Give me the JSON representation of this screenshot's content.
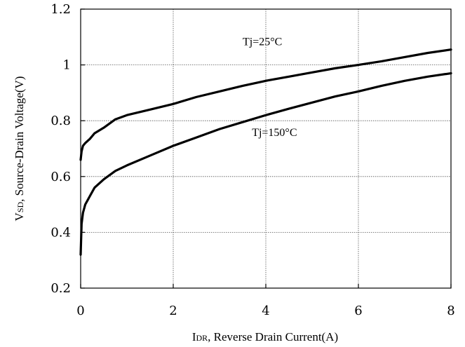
{
  "chart_data": {
    "type": "line",
    "title": "",
    "xlabel": {
      "main": "I",
      "sub": "DR",
      "rest": ", Reverse Drain Current(A)"
    },
    "ylabel": {
      "main": "V",
      "sub": "SD",
      "rest": ", Source-Drain Voltage(V)"
    },
    "xlim": [
      0,
      8
    ],
    "ylim": [
      0.2,
      1.2
    ],
    "x_ticks": [
      "0",
      "2",
      "4",
      "6",
      "8"
    ],
    "y_ticks": [
      "0.2",
      "0.4",
      "0.6",
      "0.8",
      "1",
      "1.2"
    ],
    "grid": true,
    "annotations": [
      {
        "text": "Tj=25°C",
        "x": 3.5,
        "y": 1.07
      },
      {
        "text": "Tj=150°C",
        "x": 3.7,
        "y": 0.745
      }
    ],
    "series": [
      {
        "x": [
          0,
          0.02,
          0.05,
          0.1,
          0.2,
          0.3,
          0.5,
          0.75,
          1,
          1.5,
          2,
          2.5,
          3,
          3.5,
          4,
          4.5,
          5,
          5.5,
          6,
          6.5,
          7,
          7.5,
          8
        ],
        "y": [
          0.66,
          0.69,
          0.71,
          0.72,
          0.735,
          0.755,
          0.775,
          0.805,
          0.82,
          0.84,
          0.86,
          0.885,
          0.905,
          0.925,
          0.943,
          0.958,
          0.973,
          0.988,
          1.0,
          1.013,
          1.028,
          1.043,
          1.055
        ]
      },
      {
        "x": [
          0,
          0.02,
          0.05,
          0.1,
          0.2,
          0.3,
          0.5,
          0.75,
          1,
          1.5,
          2,
          2.5,
          3,
          3.5,
          4,
          4.5,
          5,
          5.5,
          6,
          6.5,
          7,
          7.5,
          8
        ],
        "y": [
          0.32,
          0.43,
          0.47,
          0.5,
          0.53,
          0.56,
          0.59,
          0.62,
          0.64,
          0.675,
          0.71,
          0.74,
          0.77,
          0.795,
          0.82,
          0.843,
          0.865,
          0.887,
          0.905,
          0.925,
          0.943,
          0.958,
          0.97
        ]
      }
    ]
  }
}
